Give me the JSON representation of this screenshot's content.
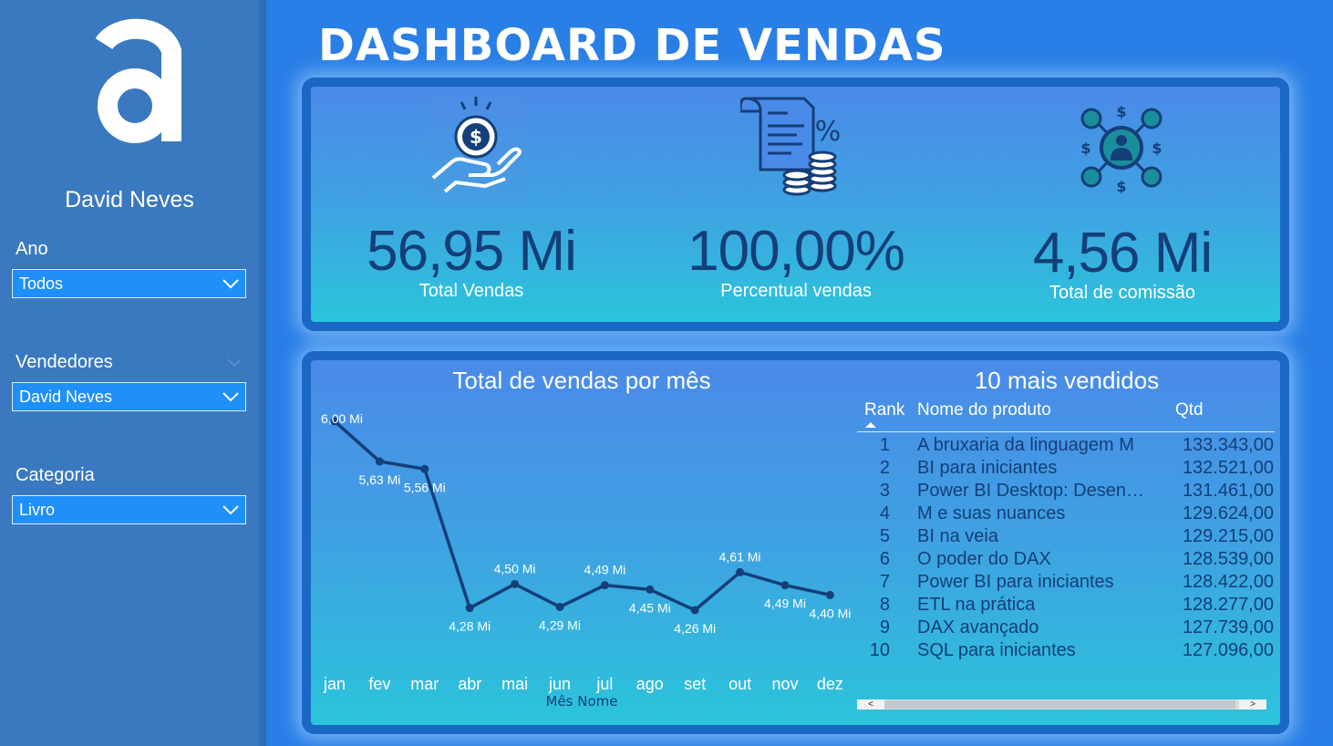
{
  "sidebar": {
    "user_name": "David Neves",
    "filters": [
      {
        "label": "Ano",
        "value": "Todos"
      },
      {
        "label": "Vendedores",
        "value": "David Neves"
      },
      {
        "label": "Categoria",
        "value": "Livro"
      }
    ]
  },
  "header": {
    "title": "DASHBOARD DE VENDAS"
  },
  "kpis": [
    {
      "value": "56,95 Mi",
      "label": "Total Vendas",
      "icon": "money-hand-icon"
    },
    {
      "value": "100,00%",
      "label": "Percentual vendas",
      "icon": "document-coins-icon"
    },
    {
      "value": "4,56 Mi",
      "label": "Total de comissão",
      "icon": "commission-network-icon"
    }
  ],
  "chart_data": {
    "type": "line",
    "title": "Total de vendas por mês",
    "xlabel": "Mês Nome",
    "categories": [
      "jan",
      "fev",
      "mar",
      "abr",
      "mai",
      "jun",
      "jul",
      "ago",
      "set",
      "out",
      "nov",
      "dez"
    ],
    "values": [
      6.0,
      5.63,
      5.56,
      4.28,
      4.5,
      4.29,
      4.49,
      4.45,
      4.26,
      4.61,
      4.49,
      4.4
    ],
    "data_labels": [
      "6,00 Mi",
      "5,63 Mi",
      "5,56 Mi",
      "4,28 Mi",
      "4,50 Mi",
      "4,29 Mi",
      "4,49 Mi",
      "4,45 Mi",
      "4,26 Mi",
      "4,61 Mi",
      "4,49 Mi",
      "4,40 Mi"
    ],
    "ylim": [
      4.0,
      6.1
    ],
    "grid": false,
    "line_color": "#143f78"
  },
  "table": {
    "title": "10 mais vendidos",
    "headers": {
      "rank": "Rank",
      "name": "Nome do produto",
      "qtd": "Qtd"
    },
    "rows": [
      {
        "rank": "1",
        "name": "A bruxaria da linguagem M",
        "qtd": "133.343,00"
      },
      {
        "rank": "2",
        "name": "BI para iniciantes",
        "qtd": "132.521,00"
      },
      {
        "rank": "3",
        "name": "Power BI Desktop: Desen…",
        "qtd": "131.461,00"
      },
      {
        "rank": "4",
        "name": "M e suas nuances",
        "qtd": "129.624,00"
      },
      {
        "rank": "5",
        "name": "BI na veia",
        "qtd": "129.215,00"
      },
      {
        "rank": "6",
        "name": "O poder do DAX",
        "qtd": "128.539,00"
      },
      {
        "rank": "7",
        "name": "Power BI para iniciantes",
        "qtd": "128.422,00"
      },
      {
        "rank": "8",
        "name": "ETL na prática",
        "qtd": "128.277,00"
      },
      {
        "rank": "9",
        "name": "DAX avançado",
        "qtd": "127.739,00"
      },
      {
        "rank": "10",
        "name": "SQL para iniciantes",
        "qtd": "127.096,00"
      }
    ],
    "scroll_left": "<",
    "scroll_right": ">"
  },
  "colors": {
    "accent": "#1f8ffa",
    "dark_text": "#143f78",
    "sidebar": "#3a79bf"
  }
}
